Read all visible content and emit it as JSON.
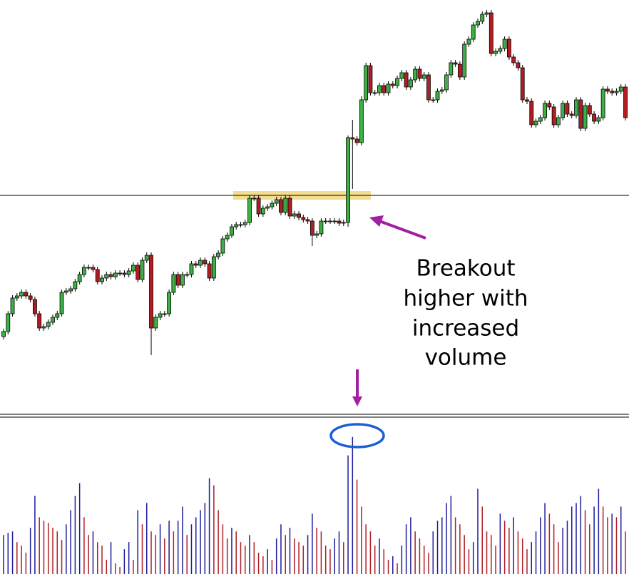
{
  "chart_data": {
    "type": "candlestick",
    "open": [
      108,
      115,
      140,
      162,
      165,
      170,
      165,
      160,
      140,
      120,
      122,
      128,
      135,
      140,
      170,
      172,
      175,
      185,
      195,
      205,
      205,
      202,
      185,
      190,
      195,
      192,
      197,
      197,
      195,
      200,
      208,
      188,
      215,
      222,
      120,
      135,
      140,
      140,
      170,
      195,
      180,
      195,
      195,
      210,
      208,
      215,
      210,
      190,
      220,
      225,
      245,
      250,
      262,
      265,
      265,
      268,
      302,
      302,
      280,
      288,
      290,
      295,
      300,
      282,
      302,
      277,
      280,
      275,
      272,
      270,
      250,
      252,
      270,
      270,
      270,
      270,
      267,
      268,
      387,
      385,
      380,
      440,
      488,
      450,
      450,
      460,
      450,
      462,
      460,
      470,
      478,
      458,
      468,
      483,
      470,
      475,
      440,
      440,
      452,
      454,
      475,
      492,
      490,
      472,
      518,
      525,
      545,
      550,
      560,
      562,
      505,
      508,
      512,
      525,
      500,
      492,
      485,
      440,
      438,
      405,
      410,
      415,
      435,
      430,
      405,
      415,
      435,
      420,
      418,
      440,
      400,
      432,
      420,
      410,
      415,
      455,
      452,
      450,
      452,
      458
    ],
    "high": [
      119,
      144,
      166,
      169,
      174,
      174,
      169,
      164,
      144,
      126,
      132,
      139,
      144,
      174,
      176,
      179,
      189,
      199,
      209,
      209,
      209,
      206,
      194,
      199,
      199,
      201,
      201,
      201,
      204,
      212,
      212,
      219,
      226,
      226,
      139,
      144,
      144,
      174,
      199,
      199,
      199,
      199,
      214,
      214,
      219,
      219,
      214,
      224,
      229,
      249,
      254,
      266,
      269,
      269,
      272,
      306,
      306,
      306,
      292,
      294,
      299,
      304,
      304,
      306,
      306,
      284,
      284,
      279,
      276,
      274,
      256,
      274,
      274,
      274,
      274,
      274,
      272,
      390,
      412,
      389,
      445,
      492,
      492,
      454,
      464,
      464,
      466,
      466,
      474,
      482,
      482,
      472,
      487,
      487,
      479,
      479,
      444,
      456,
      458,
      479,
      496,
      496,
      494,
      522,
      529,
      549,
      554,
      564,
      566,
      566,
      512,
      516,
      529,
      529,
      504,
      496,
      489,
      444,
      442,
      414,
      419,
      439,
      439,
      434,
      419,
      439,
      439,
      424,
      444,
      444,
      436,
      436,
      424,
      419,
      459,
      459,
      456,
      456,
      462,
      462
    ],
    "low": [
      104,
      111,
      136,
      158,
      161,
      161,
      156,
      136,
      116,
      116,
      118,
      124,
      131,
      136,
      166,
      168,
      171,
      181,
      191,
      201,
      198,
      181,
      181,
      186,
      188,
      188,
      193,
      191,
      191,
      196,
      184,
      184,
      211,
      82,
      116,
      131,
      136,
      136,
      166,
      176,
      176,
      191,
      191,
      204,
      204,
      206,
      186,
      186,
      216,
      221,
      241,
      246,
      258,
      261,
      261,
      264,
      298,
      276,
      276,
      284,
      286,
      291,
      278,
      278,
      273,
      273,
      271,
      268,
      266,
      235,
      246,
      248,
      266,
      266,
      266,
      263,
      263,
      262,
      315,
      376,
      376,
      436,
      446,
      446,
      446,
      446,
      446,
      456,
      456,
      466,
      454,
      454,
      464,
      466,
      466,
      436,
      436,
      436,
      448,
      450,
      471,
      486,
      468,
      468,
      514,
      521,
      541,
      546,
      556,
      501,
      501,
      504,
      508,
      496,
      488,
      481,
      436,
      434,
      401,
      401,
      406,
      411,
      426,
      401,
      401,
      411,
      416,
      414,
      414,
      396,
      396,
      416,
      406,
      406,
      411,
      448,
      446,
      446,
      448,
      411
    ],
    "close": [
      115,
      140,
      162,
      165,
      170,
      165,
      160,
      140,
      120,
      122,
      128,
      135,
      140,
      170,
      172,
      175,
      185,
      195,
      205,
      205,
      202,
      185,
      190,
      195,
      192,
      197,
      197,
      195,
      200,
      208,
      188,
      215,
      222,
      120,
      135,
      140,
      140,
      170,
      195,
      180,
      195,
      195,
      210,
      208,
      215,
      210,
      190,
      220,
      225,
      245,
      250,
      262,
      265,
      265,
      268,
      302,
      302,
      280,
      288,
      290,
      295,
      300,
      282,
      302,
      277,
      280,
      275,
      272,
      270,
      250,
      252,
      270,
      270,
      270,
      270,
      267,
      268,
      387,
      385,
      380,
      440,
      488,
      450,
      450,
      460,
      450,
      462,
      460,
      470,
      478,
      458,
      468,
      483,
      470,
      475,
      440,
      440,
      452,
      454,
      475,
      492,
      490,
      472,
      518,
      525,
      545,
      550,
      560,
      562,
      505,
      508,
      512,
      525,
      500,
      492,
      485,
      440,
      438,
      405,
      410,
      415,
      435,
      430,
      405,
      415,
      435,
      420,
      418,
      440,
      400,
      432,
      420,
      410,
      415,
      455,
      452,
      450,
      452,
      458,
      415
    ],
    "ylim": [
      0,
      580
    ],
    "up_color": "#3cb043",
    "down_color": "#b01e23",
    "volume": {
      "values": [
        55,
        58,
        60,
        45,
        40,
        30,
        65,
        110,
        80,
        75,
        72,
        65,
        60,
        48,
        70,
        90,
        110,
        128,
        80,
        55,
        60,
        45,
        40,
        20,
        45,
        15,
        10,
        35,
        45,
        20,
        90,
        70,
        100,
        60,
        55,
        70,
        50,
        75,
        60,
        75,
        95,
        55,
        70,
        80,
        90,
        100,
        135,
        125,
        90,
        70,
        50,
        65,
        60,
        45,
        40,
        55,
        45,
        30,
        25,
        35,
        20,
        50,
        70,
        55,
        65,
        50,
        45,
        40,
        55,
        85,
        65,
        60,
        40,
        35,
        50,
        60,
        45,
        167,
        193,
        133,
        95,
        70,
        60,
        40,
        50,
        35,
        20,
        25,
        15,
        40,
        70,
        80,
        60,
        50,
        40,
        30,
        60,
        75,
        80,
        100,
        110,
        80,
        70,
        55,
        35,
        45,
        120,
        95,
        60,
        55,
        40,
        85,
        75,
        65,
        80,
        60,
        50,
        35,
        45,
        60,
        80,
        100,
        85,
        70,
        45,
        65,
        75,
        95,
        100,
        110,
        90,
        70,
        95,
        120,
        95,
        80,
        85,
        80,
        95,
        60
      ],
      "ylim": [
        0,
        220
      ],
      "up_color": "#1c1c9c",
      "down_color": "#b01e23"
    },
    "annotation": [
      "Breakout",
      "higher with",
      "increased",
      "volume"
    ]
  }
}
